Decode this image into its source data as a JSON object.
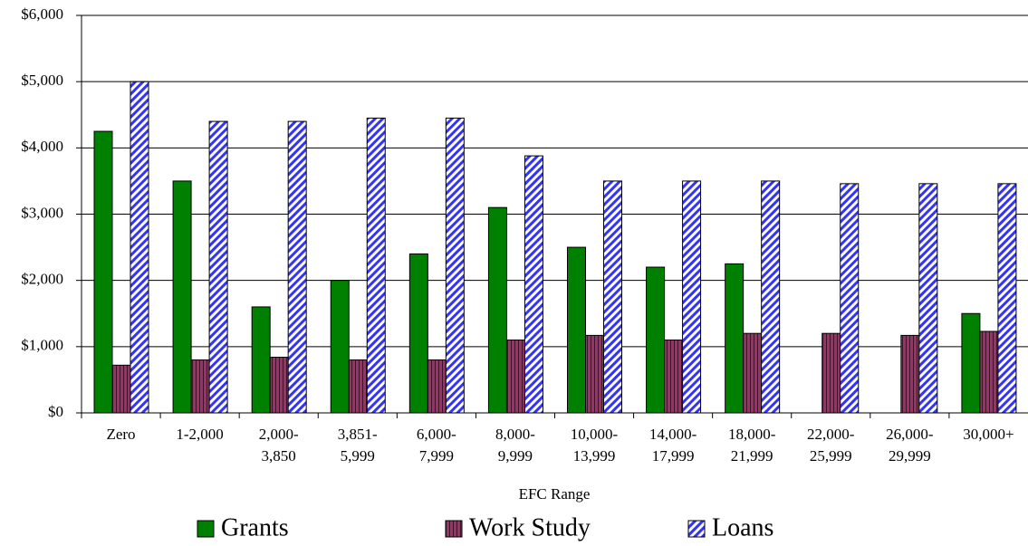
{
  "chart_data": {
    "type": "bar",
    "categories": [
      "Zero",
      "1-2,000",
      "2,000-\n3,850",
      "3,851-\n5,999",
      "6,000-\n7,999",
      "8,000-\n9,999",
      "10,000-\n13,999",
      "14,000-\n17,999",
      "18,000-\n21,999",
      "22,000-\n25,999",
      "26,000-\n29,999",
      "30,000+"
    ],
    "series": [
      {
        "name": "Grants",
        "color": "#008000",
        "pattern": "solid",
        "values": [
          4250,
          3500,
          1600,
          2000,
          2400,
          3100,
          2500,
          2200,
          2250,
          null,
          null,
          1500
        ]
      },
      {
        "name": "Work Study",
        "color": "#993366",
        "pattern": "vertical",
        "values": [
          720,
          800,
          840,
          800,
          800,
          1100,
          1170,
          1100,
          1200,
          1200,
          1170,
          1230
        ]
      },
      {
        "name": "Loans",
        "color": "#3333ff",
        "pattern": "diagonal",
        "values": [
          5000,
          4400,
          4400,
          4450,
          4450,
          3880,
          3500,
          3500,
          3500,
          3460,
          3460,
          3460
        ]
      }
    ],
    "x_label": "EFC Range",
    "ylim": [
      0,
      6000
    ],
    "yticks": [
      {
        "value": 0,
        "label": "$0"
      },
      {
        "value": 1000,
        "label": "$1,000"
      },
      {
        "value": 2000,
        "label": "$2,000"
      },
      {
        "value": 3000,
        "label": "$3,000"
      },
      {
        "value": 4000,
        "label": "$4,000"
      },
      {
        "value": 5000,
        "label": "$5,000"
      },
      {
        "value": 6000,
        "label": "$6,000"
      }
    ],
    "grid": true,
    "legend": "bottom"
  }
}
